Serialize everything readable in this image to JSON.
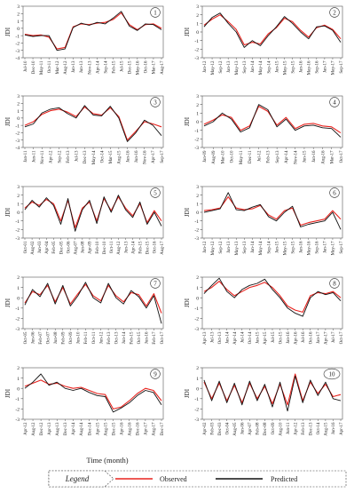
{
  "chart_data": [
    {
      "type": "line",
      "panel_label": "1",
      "ylabel": "JDI",
      "ylim": [
        -4,
        3
      ],
      "yticks": [
        -4,
        -3,
        -2,
        -1,
        0,
        1,
        2,
        3
      ],
      "x": [
        "Jul-10",
        "Dec-10",
        "May-11",
        "Oct-11",
        "Mar-12",
        "Aug-12",
        "Jan-13",
        "Jun-13",
        "Nov-13",
        "Apr-14",
        "Sep-14",
        "Feb-15",
        "Jul-15",
        "Dec-15",
        "May-16",
        "Oct-16",
        "Mar-17",
        "Aug-17"
      ],
      "series": [
        {
          "name": "Observed",
          "values": [
            -0.8,
            -1.0,
            -0.9,
            -1.2,
            -2.8,
            -2.6,
            0.2,
            0.6,
            0.5,
            0.7,
            0.8,
            1.2,
            2.1,
            0.5,
            -0.2,
            0.5,
            0.6,
            0.0
          ]
        },
        {
          "name": "Predicted",
          "values": [
            -0.9,
            -1.1,
            -1.0,
            -1.0,
            -3.0,
            -2.8,
            0.1,
            0.7,
            0.4,
            0.8,
            0.6,
            1.4,
            2.3,
            0.3,
            -0.3,
            0.6,
            0.5,
            -0.2
          ]
        }
      ]
    },
    {
      "type": "line",
      "panel_label": "2",
      "ylabel": "JDI",
      "ylim": [
        -3,
        3
      ],
      "yticks": [
        -3,
        -2,
        -1,
        0,
        1,
        2,
        3
      ],
      "x": [
        "Jan-12",
        "May-12",
        "Sep-12",
        "Jan-13",
        "May-13",
        "Sep-13",
        "Jan-14",
        "May-14",
        "Sep-14",
        "Jan-15",
        "May-15",
        "Sep-15",
        "Jan-16",
        "May-16",
        "Sep-16",
        "Jan-17",
        "May-17",
        "Sep-17"
      ],
      "series": [
        {
          "name": "Observed",
          "values": [
            0.8,
            1.5,
            2.0,
            1.2,
            0.3,
            -1.5,
            -1.2,
            -1.4,
            -0.2,
            0.5,
            1.6,
            1.2,
            0.2,
            -0.6,
            0.5,
            0.8,
            0.3,
            -0.8
          ]
        },
        {
          "name": "Predicted",
          "values": [
            0.6,
            1.7,
            2.2,
            1.0,
            0.0,
            -1.8,
            -1.0,
            -1.6,
            -0.4,
            0.6,
            1.8,
            1.0,
            0.0,
            -0.8,
            0.6,
            0.7,
            0.2,
            -1.2
          ]
        }
      ]
    },
    {
      "type": "line",
      "panel_label": "3",
      "ylabel": "JDI",
      "ylim": [
        -4,
        3
      ],
      "yticks": [
        -4,
        -3,
        -2,
        -1,
        0,
        1,
        2,
        3
      ],
      "x": [
        "Jan-11",
        "Jun-11",
        "Nov-11",
        "Apr-12",
        "Sep-12",
        "Feb-13",
        "Jul-13",
        "Dec-13",
        "May-14",
        "Oct-14",
        "Mar-15",
        "Aug-15",
        "Jan-16",
        "Jun-16",
        "Nov-16",
        "Apr-17",
        "Sep-17"
      ],
      "series": [
        {
          "name": "Observed",
          "values": [
            -1.0,
            -0.5,
            0.5,
            1.0,
            1.2,
            0.8,
            0.2,
            1.5,
            0.6,
            0.4,
            1.4,
            0.2,
            -3.0,
            -1.8,
            -0.5,
            -0.8,
            -1.2
          ]
        },
        {
          "name": "Predicted",
          "values": [
            -1.2,
            -0.8,
            0.7,
            1.2,
            1.4,
            0.6,
            0.0,
            1.7,
            0.4,
            0.3,
            1.6,
            0.0,
            -3.2,
            -2.0,
            -0.3,
            -1.0,
            -2.4
          ]
        }
      ]
    },
    {
      "type": "line",
      "panel_label": "4",
      "ylabel": "JDI",
      "ylim": [
        -3,
        3
      ],
      "yticks": [
        -3,
        -2,
        -1,
        0,
        1,
        2,
        3
      ],
      "x": [
        "Jan-09",
        "Aug-09",
        "Mar-10",
        "Oct-10",
        "May-11",
        "Dec-11",
        "Jul-12",
        "Feb-13",
        "Sep-13",
        "Apr-14",
        "Nov-14",
        "Jun-15",
        "Jan-16",
        "Aug-16",
        "Mar-17",
        "Oct-17"
      ],
      "series": [
        {
          "name": "Observed",
          "values": [
            -0.3,
            0.2,
            0.8,
            0.5,
            -1.0,
            -0.5,
            1.8,
            1.2,
            -0.4,
            0.5,
            -0.8,
            -0.3,
            -0.2,
            -0.5,
            -0.6,
            -1.3
          ]
        },
        {
          "name": "Predicted",
          "values": [
            -0.5,
            0.0,
            1.0,
            0.3,
            -1.2,
            -0.7,
            2.0,
            1.4,
            -0.6,
            0.3,
            -1.0,
            -0.5,
            -0.4,
            -0.7,
            -0.8,
            -1.8
          ]
        }
      ]
    },
    {
      "type": "line",
      "panel_label": "5",
      "ylabel": "JDI",
      "ylim": [
        -3,
        3
      ],
      "yticks": [
        -3,
        -2,
        -1,
        0,
        1,
        2,
        3
      ],
      "x": [
        "Oct-01",
        "Aug-02",
        "Jun-03",
        "Apr-04",
        "Feb-05",
        "Dec-05",
        "Oct-06",
        "Aug-07",
        "Jun-08",
        "Apr-09",
        "Feb-10",
        "Dec-10",
        "Oct-11",
        "Aug-12",
        "Jun-13",
        "Apr-14",
        "Feb-15",
        "Dec-15",
        "Oct-16",
        "Aug-17"
      ],
      "series": [
        {
          "name": "Observed",
          "values": [
            0.5,
            1.2,
            0.8,
            1.5,
            1.0,
            -1.0,
            1.4,
            -1.8,
            0.5,
            1.2,
            -1.0,
            1.6,
            0.2,
            1.8,
            0.5,
            -0.4,
            1.0,
            -1.2,
            0.2,
            -1.0
          ]
        },
        {
          "name": "Predicted",
          "values": [
            0.3,
            1.4,
            0.6,
            1.7,
            0.8,
            -1.4,
            1.6,
            -2.2,
            0.3,
            1.4,
            -1.3,
            1.8,
            0.0,
            2.0,
            0.3,
            -0.6,
            1.2,
            -1.4,
            0.0,
            -1.6
          ]
        }
      ]
    },
    {
      "type": "line",
      "panel_label": "6",
      "ylabel": "JDI",
      "ylim": [
        -3,
        3
      ],
      "yticks": [
        -3,
        -2,
        -1,
        0,
        1,
        2,
        3
      ],
      "x": [
        "Jan-12",
        "May-12",
        "Sep-12",
        "Jan-13",
        "May-13",
        "Sep-13",
        "Jan-14",
        "May-14",
        "Sep-14",
        "Jan-15",
        "May-15",
        "Sep-15",
        "Jan-16",
        "May-16",
        "Sep-16",
        "Jan-17",
        "May-17",
        "Sep-17"
      ],
      "series": [
        {
          "name": "Observed",
          "values": [
            0.2,
            0.3,
            0.5,
            1.8,
            0.5,
            0.3,
            0.4,
            0.8,
            -0.3,
            -0.8,
            0.2,
            0.5,
            -1.5,
            -1.2,
            -1.0,
            -0.8,
            0.2,
            -0.8
          ]
        },
        {
          "name": "Predicted",
          "values": [
            0.0,
            0.2,
            0.4,
            2.3,
            0.3,
            0.2,
            0.6,
            0.9,
            -0.5,
            -1.0,
            0.0,
            0.7,
            -1.7,
            -1.4,
            -1.2,
            -1.0,
            0.0,
            -2.0
          ]
        }
      ]
    },
    {
      "type": "line",
      "panel_label": "7",
      "ylabel": "JDI",
      "ylim": [
        -3,
        2
      ],
      "yticks": [
        -3,
        -2,
        -1,
        0,
        1,
        2
      ],
      "x": [
        "Oct-05",
        "Jun-06",
        "Feb-07",
        "Oct-07",
        "Jun-08",
        "Feb-09",
        "Oct-09",
        "Jun-10",
        "Feb-11",
        "Oct-11",
        "Jun-12",
        "Feb-13",
        "Oct-13",
        "Jun-14",
        "Feb-15",
        "Oct-15",
        "Jun-16",
        "Feb-17",
        "Oct-17"
      ],
      "series": [
        {
          "name": "Observed",
          "values": [
            -0.5,
            0.6,
            0.3,
            1.2,
            -0.4,
            1.0,
            -0.6,
            0.4,
            1.3,
            0.2,
            -0.3,
            1.2,
            0.2,
            -0.4,
            0.5,
            0.3,
            -0.8,
            0.4,
            -1.5
          ]
        },
        {
          "name": "Predicted",
          "values": [
            -0.7,
            0.8,
            0.1,
            1.4,
            -0.6,
            1.2,
            -0.8,
            0.2,
            1.5,
            0.0,
            -0.5,
            1.4,
            0.0,
            -0.6,
            0.7,
            0.1,
            -1.0,
            0.2,
            -2.5
          ]
        }
      ]
    },
    {
      "type": "line",
      "panel_label": "8",
      "ylabel": "JDI",
      "ylim": [
        -3,
        2
      ],
      "yticks": [
        -3,
        -2,
        -1,
        0,
        1,
        2
      ],
      "x": [
        "Apr-13",
        "Jul-13",
        "Oct-13",
        "Jan-14",
        "Apr-14",
        "Jul-14",
        "Oct-14",
        "Jan-15",
        "Apr-15",
        "Jul-15",
        "Oct-15",
        "Jan-16",
        "Apr-16",
        "Jul-16",
        "Oct-16",
        "Jan-17",
        "Apr-17",
        "Jul-17",
        "Oct-17"
      ],
      "series": [
        {
          "name": "Observed",
          "values": [
            0.6,
            1.0,
            1.6,
            0.8,
            0.2,
            0.6,
            1.0,
            1.2,
            1.5,
            1.0,
            0.2,
            -0.8,
            -1.2,
            -1.4,
            0.2,
            0.5,
            0.4,
            0.6,
            0.0
          ]
        },
        {
          "name": "Predicted",
          "values": [
            0.4,
            1.2,
            1.9,
            0.6,
            0.0,
            0.8,
            1.2,
            1.4,
            1.8,
            0.8,
            0.0,
            -1.0,
            -1.5,
            -1.8,
            0.0,
            0.6,
            0.3,
            0.5,
            -0.3
          ]
        }
      ]
    },
    {
      "type": "line",
      "panel_label": "9",
      "ylabel": "JDI",
      "ylim": [
        -3,
        2
      ],
      "yticks": [
        -3,
        -2,
        -1,
        0,
        1,
        2
      ],
      "x": [
        "Apr-12",
        "Aug-12",
        "Dec-12",
        "Apr-13",
        "Aug-13",
        "Dec-13",
        "Apr-14",
        "Aug-14",
        "Dec-14",
        "Apr-15",
        "Aug-15",
        "Dec-15",
        "Apr-16",
        "Aug-16",
        "Dec-16",
        "Apr-17",
        "Aug-17",
        "Dec-17"
      ],
      "series": [
        {
          "name": "Observed",
          "values": [
            0.2,
            0.5,
            0.8,
            0.4,
            0.5,
            0.2,
            0.0,
            0.1,
            -0.2,
            -0.5,
            -0.6,
            -2.0,
            -1.8,
            -1.2,
            -0.5,
            0.0,
            -0.2,
            -1.2
          ]
        },
        {
          "name": "Predicted",
          "values": [
            0.0,
            0.6,
            1.4,
            0.3,
            0.6,
            0.0,
            -0.2,
            0.0,
            -0.4,
            -0.7,
            -0.8,
            -2.3,
            -1.9,
            -1.4,
            -0.7,
            -0.2,
            -0.4,
            -1.6
          ]
        }
      ]
    },
    {
      "type": "line",
      "panel_label": "10",
      "ylabel": "JDI",
      "ylim": [
        -3,
        2
      ],
      "yticks": [
        -3,
        -2,
        -1,
        0,
        1,
        2
      ],
      "x": [
        "Apr-02",
        "Feb-03",
        "Dec-03",
        "Oct-04",
        "Aug-05",
        "Jun-06",
        "Apr-07",
        "Feb-08",
        "Dec-08",
        "Oct-09",
        "Aug-10",
        "Jun-11",
        "Apr-12",
        "Feb-13",
        "Dec-13",
        "Oct-14",
        "Aug-15",
        "Jun-16",
        "Apr-17"
      ],
      "series": [
        {
          "name": "Observed",
          "values": [
            0.6,
            -1.0,
            0.5,
            -1.2,
            0.3,
            -1.4,
            0.5,
            -1.0,
            0.2,
            -1.5,
            0.4,
            -1.6,
            1.4,
            -1.2,
            0.6,
            -0.5,
            0.4,
            -0.8,
            -0.6
          ]
        },
        {
          "name": "Predicted",
          "values": [
            0.8,
            -1.2,
            0.7,
            -1.4,
            0.5,
            -1.6,
            0.7,
            -1.2,
            0.4,
            -1.8,
            0.6,
            -2.2,
            1.2,
            -1.4,
            0.8,
            -0.7,
            0.6,
            -1.0,
            -1.2
          ]
        }
      ]
    }
  ],
  "xlabel": "Time (month)",
  "legend": {
    "title": "Legend",
    "items": [
      {
        "label": "Observed",
        "color": "#e8231e"
      },
      {
        "label": "Predicted",
        "color": "#111111"
      }
    ]
  }
}
